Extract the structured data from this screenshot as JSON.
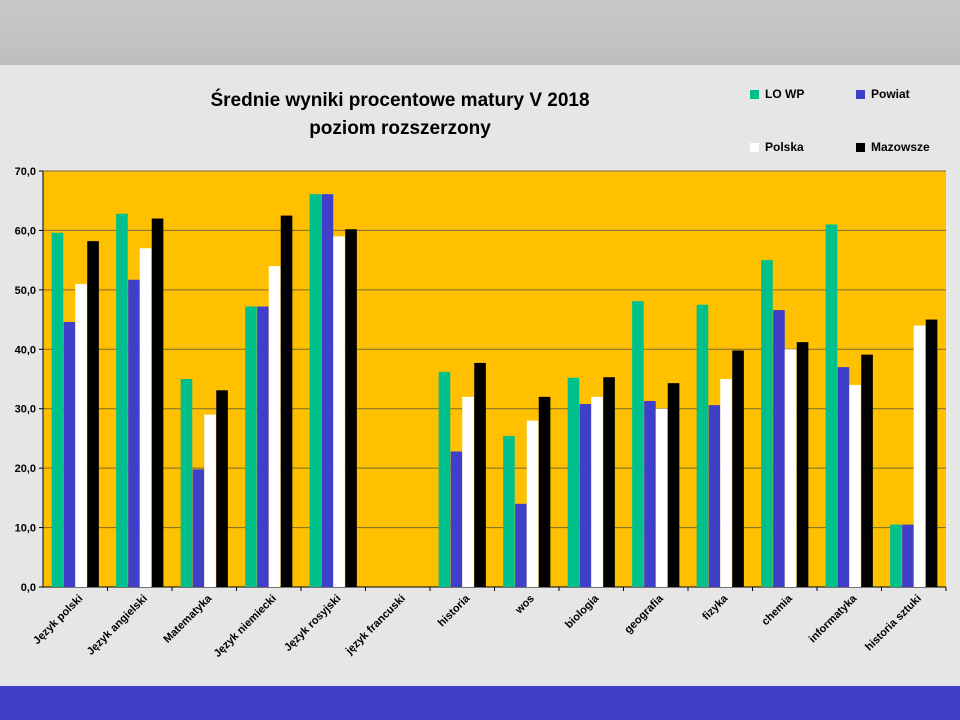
{
  "chart_data": {
    "type": "bar",
    "title": "Średnie wyniki procentowe matury V 2018",
    "subtitle": "poziom rozszerzony",
    "xlabel": "",
    "ylabel": "",
    "ylim": [
      0,
      70
    ],
    "yticks": [
      "0,0",
      "10,0",
      "20,0",
      "30,0",
      "40,0",
      "50,0",
      "60,0",
      "70,0"
    ],
    "grid": true,
    "legend_position": "top-right",
    "plot_background": "#ffc000",
    "categories": [
      "Język polski",
      "Język angielski",
      "Matematyka",
      "Język niemiecki",
      "Język rosyjski",
      "język francuski",
      "historia",
      "wos",
      "biologia",
      "geografia",
      "fizyka",
      "chemia",
      "informatyka",
      "historia sztuki"
    ],
    "series": [
      {
        "name": "LO WP",
        "color": "#00c08b",
        "values": [
          59.6,
          62.8,
          35.0,
          47.2,
          66.1,
          null,
          36.2,
          25.4,
          35.2,
          48.1,
          47.5,
          55.0,
          61.0,
          10.5
        ]
      },
      {
        "name": "Powiat",
        "color": "#3f3fc9",
        "values": [
          44.6,
          51.7,
          19.8,
          47.2,
          66.1,
          null,
          22.8,
          14.0,
          30.8,
          31.3,
          30.6,
          46.6,
          37.0,
          10.5
        ]
      },
      {
        "name": "Polska",
        "color": "#ffffff",
        "values": [
          51.0,
          57.0,
          29.0,
          54.0,
          59.0,
          null,
          32.0,
          28.0,
          32.0,
          30.0,
          35.0,
          40.0,
          34.0,
          44.0
        ]
      },
      {
        "name": "Mazowsze",
        "color": "#000000",
        "values": [
          58.2,
          62.0,
          33.1,
          62.5,
          60.2,
          null,
          37.7,
          32.0,
          35.3,
          34.3,
          39.8,
          41.2,
          39.1,
          45.0
        ]
      }
    ]
  }
}
